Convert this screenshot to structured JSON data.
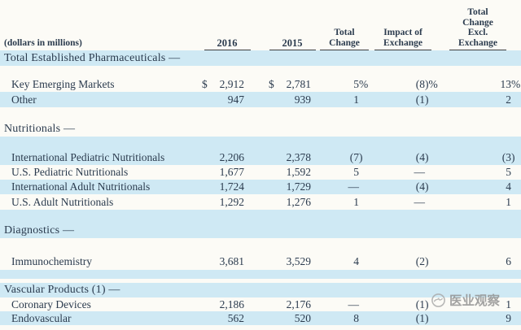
{
  "header": {
    "note": "(dollars in millions)",
    "columns": [
      {
        "key": "y2016",
        "label": "2016",
        "year": true
      },
      {
        "key": "y2015",
        "label": "2015",
        "year": true
      },
      {
        "key": "change",
        "label": "Total\nChange"
      },
      {
        "key": "impact",
        "label": "Impact of\nExchange"
      },
      {
        "key": "excl",
        "label": "Total\nChange\nExcl.\nExchange"
      }
    ]
  },
  "rows": [
    {
      "type": "section",
      "bg": "blue",
      "h": 19,
      "label": "Total Established Pharmaceuticals —"
    },
    {
      "type": "spacer",
      "bg": "white",
      "h": 13
    },
    {
      "type": "data",
      "bg": "white",
      "h": 19,
      "label": "Key Emerging Markets",
      "cur2016": "$",
      "y2016": "2,912",
      "cur2015": "$",
      "y2015": "2,781",
      "change": "5%",
      "impact": "(8)%",
      "excl": "13%"
    },
    {
      "type": "data",
      "bg": "blue",
      "h": 19,
      "label": "Other",
      "cur2016": "",
      "y2016": "947",
      "cur2015": "",
      "y2015": "939",
      "change": "1",
      "impact": "(1)",
      "excl": "2"
    },
    {
      "type": "spacer",
      "bg": "white",
      "h": 18
    },
    {
      "type": "section",
      "bg": "white",
      "h": 18,
      "label": "Nutritionals —"
    },
    {
      "type": "spacer",
      "bg": "blue",
      "h": 17
    },
    {
      "type": "data",
      "bg": "blue",
      "h": 18,
      "label": "International Pediatric Nutritionals",
      "cur2016": "",
      "y2016": "2,206",
      "cur2015": "",
      "y2015": "2,378",
      "change": "(7)",
      "impact": "(4)",
      "excl": "(3)"
    },
    {
      "type": "data",
      "bg": "white",
      "h": 18,
      "label": "U.S. Pediatric Nutritionals",
      "cur2016": "",
      "y2016": "1,677",
      "cur2015": "",
      "y2015": "1,592",
      "change": "5",
      "impact": "—",
      "excl": "5"
    },
    {
      "type": "data",
      "bg": "blue",
      "h": 18,
      "label": "International Adult Nutritionals",
      "cur2016": "",
      "y2016": "1,724",
      "cur2015": "",
      "y2015": "1,729",
      "change": "—",
      "impact": "(4)",
      "excl": "4"
    },
    {
      "type": "data",
      "bg": "white",
      "h": 19,
      "label": "U.S. Adult Nutritionals",
      "cur2016": "",
      "y2016": "1,292",
      "cur2015": "",
      "y2015": "1,276",
      "change": "1",
      "impact": "—",
      "excl": "1"
    },
    {
      "type": "spacer",
      "bg": "blue",
      "h": 17
    },
    {
      "type": "section",
      "bg": "blue",
      "h": 18,
      "label": "Diagnostics —"
    },
    {
      "type": "spacer",
      "bg": "white",
      "h": 18
    },
    {
      "type": "data",
      "bg": "white",
      "h": 21,
      "label": "Immunochemistry",
      "cur2016": "",
      "y2016": "3,681",
      "cur2015": "",
      "y2015": "3,529",
      "change": "4",
      "impact": "(2)",
      "excl": "6"
    },
    {
      "type": "spacer",
      "bg": "blue",
      "h": 11
    },
    {
      "type": "spacer",
      "bg": "white",
      "h": 5
    },
    {
      "type": "section",
      "bg": "blue",
      "h": 18,
      "label": "Vascular Products (1) —"
    },
    {
      "type": "data",
      "bg": "white",
      "h": 17,
      "label": "Coronary Devices",
      "cur2016": "",
      "y2016": "2,186",
      "cur2015": "",
      "y2015": "2,176",
      "change": "—",
      "impact": "(1)",
      "excl": "1"
    },
    {
      "type": "data",
      "bg": "blue",
      "h": 17,
      "label": "Endovascular",
      "cur2016": "",
      "y2016": "562",
      "cur2015": "",
      "y2015": "520",
      "change": "8",
      "impact": "(1)",
      "excl": "9"
    },
    {
      "type": "spacer",
      "bg": "white",
      "h": 6
    }
  ],
  "watermark": {
    "icon": "circle-swirl-logo",
    "text": "医业观察"
  },
  "colors": {
    "stripe": "#cfe9f4",
    "paper": "#fcfbf6",
    "ink": "#2b3b4e",
    "watermark_grey": "#8f8f8f"
  }
}
